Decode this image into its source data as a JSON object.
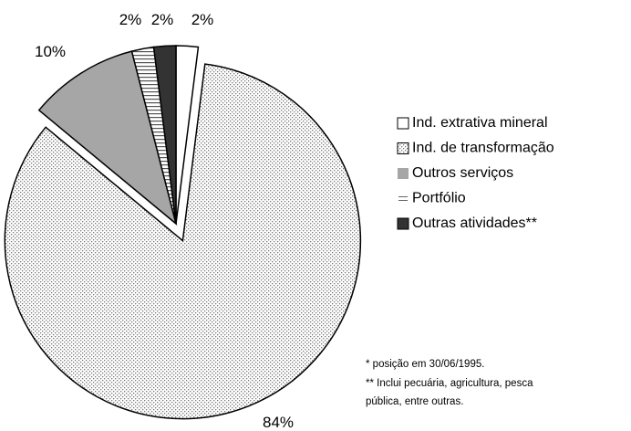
{
  "chart_data": {
    "type": "pie",
    "categories": [
      "Ind. extrativa mineral",
      "Ind. de transformação",
      "Outros serviços",
      "Portfólio",
      "Outras atividades**"
    ],
    "values": [
      2,
      84,
      10,
      2,
      2
    ],
    "value_labels": [
      "2%",
      "84%",
      "10%",
      "2%",
      "2%"
    ],
    "colors": [
      "#ffffff",
      "dots",
      "#a6a6a6",
      "lines",
      "#333333"
    ],
    "notes": [
      "* posição em 30/06/1995.",
      "** Inclui pecuária, agricultura, pesca",
      "pública, entre outras."
    ],
    "legend": "right"
  }
}
